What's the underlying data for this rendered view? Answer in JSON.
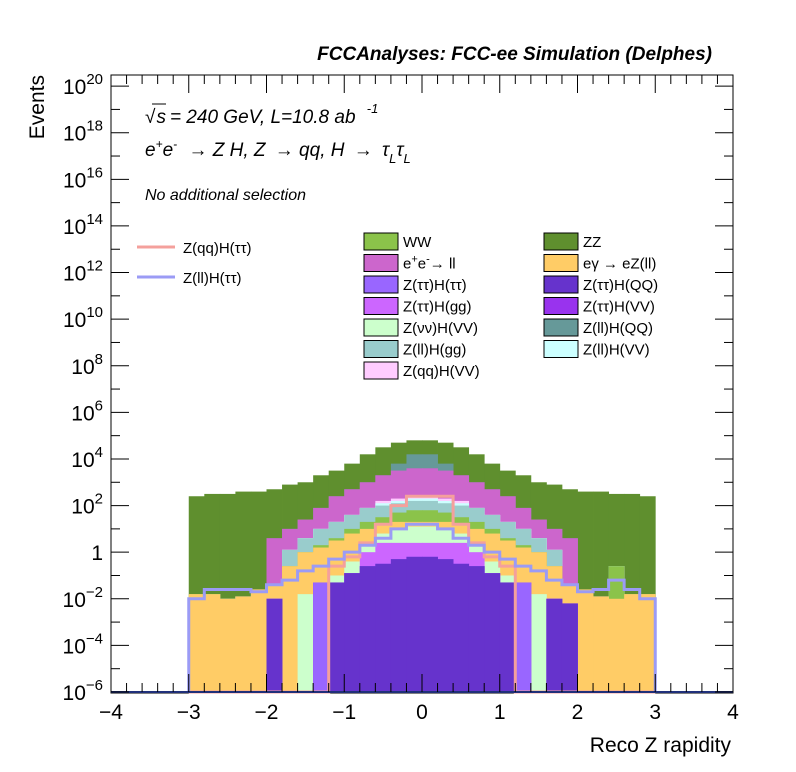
{
  "chart_data": {
    "type": "stacked-histogram",
    "title": "FCCAnalyses: FCC-ee Simulation (Delphes)",
    "xlabel": "Reco Z rapidity",
    "ylabel": "Events",
    "xlim": [
      -4,
      4
    ],
    "ylim": [
      1e-06,
      3e+20
    ],
    "log_y": true,
    "annotations": {
      "energy": "√s = 240 GeV, L=10.8 ab -1",
      "process": "e+e- → Z H, Z → qq, H → τLτL",
      "selection": "No additional selection"
    },
    "x_ticks": [
      "−4",
      "−3",
      "−2",
      "−1",
      "0",
      "1",
      "2",
      "3",
      "4"
    ],
    "y_ticks": [
      "10^-6",
      "10^-4",
      "10^-2",
      "1",
      "10^2",
      "10^4",
      "10^6",
      "10^8",
      "10^10",
      "10^12",
      "10^14",
      "10^16",
      "10^18",
      "10^20"
    ],
    "bin_edges": [
      -3.0,
      -2.8,
      -2.6,
      -2.4,
      -2.2,
      -2.0,
      -1.8,
      -1.6,
      -1.4,
      -1.2,
      -1.0,
      -0.8,
      -0.6,
      -0.4,
      -0.2,
      0.0,
      0.2,
      0.4,
      0.6,
      0.8,
      1.0,
      1.2,
      1.4,
      1.6,
      1.8,
      2.0,
      2.2,
      2.4,
      2.6,
      2.8,
      3.0
    ],
    "stack_order_bottom_to_top": [
      "Z(ττ)H(QQ)",
      "Z(ττ)H(ττ)",
      "Z(ττ)H(VV)",
      "Z(ττ)H(gg)",
      "Z(νν)H(VV)",
      "eγ → eZ(ll)",
      "WW",
      "Z(ll)H(gg)",
      "Z(ll)H(VV)",
      "Z(qq)H(VV)",
      "e+e-→ ll",
      "Z(ll)H(QQ)",
      "ZZ"
    ],
    "legend": [
      {
        "name": "WW",
        "color": "#8bc34a"
      },
      {
        "name": "ZZ",
        "color": "#5f8f2e"
      },
      {
        "name": "e+e-→ ll",
        "color": "#cc66cc"
      },
      {
        "name": "eγ → eZ(ll)",
        "color": "#ffcc66"
      },
      {
        "name": "Z(ττ)H(ττ)",
        "color": "#9966ff"
      },
      {
        "name": "Z(ττ)H(QQ)",
        "color": "#6633cc"
      },
      {
        "name": "Z(ττ)H(gg)",
        "color": "#cc66ff"
      },
      {
        "name": "Z(ττ)H(VV)",
        "color": "#9933ee"
      },
      {
        "name": "Z(νν)H(VV)",
        "color": "#ccffcc"
      },
      {
        "name": "Z(ll)H(QQ)",
        "color": "#669999"
      },
      {
        "name": "Z(ll)H(gg)",
        "color": "#99cccc"
      },
      {
        "name": "Z(ll)H(VV)",
        "color": "#ccffff"
      },
      {
        "name": "Z(qq)H(VV)",
        "color": "#ffccff"
      }
    ],
    "signal_legend": [
      {
        "name": "Z(qq)H(ττ)",
        "color": "#f4a09c"
      },
      {
        "name": "Z(ll)H(ττ)",
        "color": "#9b9bf5"
      }
    ],
    "stack_tops_log10": {
      "Z(ττ)H(QQ)": [
        -6,
        -6,
        -6,
        -6,
        -6,
        -2.0,
        -6,
        -6,
        -6,
        -1.3,
        -0.9,
        -0.6,
        -0.5,
        -0.3,
        -0.2,
        -0.2,
        -0.3,
        -0.5,
        -0.6,
        -0.9,
        -1.3,
        -6,
        -6,
        -2.0,
        -2.2,
        -6,
        -6,
        -6,
        -6,
        -6
      ],
      "Z(ττ)H(ττ)": [
        -6,
        -6,
        -6,
        -6,
        -6,
        -2.0,
        -6,
        -6,
        -1.3,
        -1.3,
        -0.9,
        -0.6,
        -0.5,
        -0.3,
        -0.2,
        -0.2,
        -0.3,
        -0.5,
        -0.6,
        -0.9,
        -1.3,
        -1.3,
        -6,
        -2.0,
        -2.2,
        -6,
        -6,
        -6,
        -6,
        -6
      ],
      "Z(ττ)H(VV)": [
        -6,
        -6,
        -6,
        -6,
        -6,
        -2.0,
        -6,
        -6,
        -1.3,
        -1.3,
        -0.9,
        -0.6,
        -0.5,
        -0.3,
        -0.2,
        -0.2,
        -0.3,
        -0.5,
        -0.6,
        -0.9,
        -1.3,
        -1.3,
        -6,
        -2.0,
        -2.2,
        -6,
        -6,
        -6,
        -6,
        -6
      ],
      "Z(ττ)H(gg)": [
        -6,
        -6,
        -6,
        -6,
        -6,
        -2.0,
        -6,
        -6,
        -1.3,
        -1.3,
        -0.9,
        0.0,
        0.4,
        0.4,
        0.4,
        0.4,
        0.4,
        0.4,
        0.0,
        -0.9,
        -1.3,
        -1.3,
        -6,
        -2.0,
        -2.2,
        -6,
        -6,
        -6,
        -6,
        -6
      ],
      "Z(νν)H(VV)": [
        -6,
        -6,
        -6,
        -6,
        -6,
        -2.0,
        -6,
        -1.8,
        -1.3,
        -1.0,
        -0.4,
        0.3,
        0.8,
        1.0,
        1.1,
        1.1,
        1.0,
        0.8,
        0.3,
        -0.4,
        -1.0,
        -1.3,
        -1.8,
        -2.0,
        -2.2,
        -6,
        -6,
        -6,
        -6,
        -6
      ],
      "eγ → eZ(ll)": [
        -1.8,
        -1.8,
        -2.0,
        -1.9,
        -1.6,
        -1.4,
        -0.6,
        0.0,
        0.2,
        0.5,
        0.8,
        1.0,
        1.2,
        1.3,
        1.3,
        1.3,
        1.3,
        1.2,
        1.0,
        0.8,
        0.5,
        0.2,
        0.0,
        -0.6,
        -1.4,
        -1.6,
        -1.9,
        -2.0,
        -1.8,
        -1.8
      ],
      "WW": [
        -1.8,
        -1.8,
        -2.0,
        -1.9,
        -1.6,
        -1.4,
        -0.6,
        0.0,
        0.3,
        0.6,
        1.0,
        1.3,
        1.5,
        1.7,
        1.8,
        1.8,
        1.7,
        1.5,
        1.3,
        1.0,
        0.6,
        0.3,
        0.0,
        -0.6,
        -1.4,
        -1.6,
        -1.9,
        -0.6,
        -1.8,
        -1.8
      ],
      "Z(ll)H(gg)": [
        -1.8,
        -1.8,
        -2.0,
        -1.9,
        -1.6,
        -1.4,
        0.1,
        0.6,
        1.0,
        1.3,
        1.6,
        1.9,
        2.0,
        2.1,
        2.2,
        2.2,
        2.1,
        2.0,
        1.9,
        1.6,
        1.3,
        1.0,
        0.6,
        0.1,
        -1.4,
        -1.6,
        -1.9,
        -0.6,
        -1.8,
        -1.8
      ],
      "Z(ll)H(VV)": [
        -1.8,
        -1.8,
        -2.0,
        -1.9,
        -1.6,
        -1.4,
        0.1,
        0.6,
        1.0,
        1.3,
        1.6,
        1.9,
        2.1,
        2.2,
        2.3,
        2.3,
        2.2,
        2.1,
        1.9,
        1.6,
        1.3,
        1.0,
        0.6,
        0.1,
        -1.4,
        -1.6,
        -1.9,
        -0.6,
        -1.8,
        -1.8
      ],
      "Z(qq)H(VV)": [
        -1.8,
        -1.8,
        -2.0,
        -1.9,
        -1.6,
        -1.4,
        0.1,
        0.6,
        1.0,
        1.3,
        1.6,
        1.9,
        2.2,
        2.3,
        2.4,
        2.4,
        2.3,
        2.2,
        1.9,
        1.6,
        1.3,
        1.0,
        0.6,
        0.1,
        -1.4,
        -1.6,
        -1.9,
        -0.6,
        -1.8,
        -1.8
      ],
      "e+e-→ ll": [
        -1.8,
        -1.8,
        -2.0,
        -1.9,
        -1.6,
        0.6,
        1.0,
        1.4,
        1.9,
        2.4,
        2.7,
        3.0,
        3.3,
        3.5,
        3.6,
        3.6,
        3.5,
        3.3,
        3.0,
        2.7,
        2.4,
        1.9,
        1.4,
        1.0,
        0.6,
        -1.6,
        -1.9,
        -0.6,
        -1.8,
        -1.8
      ],
      "Z(ll)H(QQ)": [
        -1.8,
        -1.8,
        -2.0,
        -1.9,
        -1.6,
        0.6,
        1.0,
        1.4,
        1.9,
        2.4,
        2.7,
        3.0,
        3.3,
        3.8,
        4.2,
        4.2,
        3.8,
        3.3,
        3.0,
        2.7,
        2.4,
        1.9,
        1.4,
        1.0,
        0.6,
        -1.6,
        -1.9,
        -0.6,
        -1.8,
        -1.8
      ],
      "ZZ": [
        2.4,
        2.5,
        2.5,
        2.6,
        2.6,
        2.7,
        2.9,
        3.0,
        3.3,
        3.5,
        3.8,
        4.2,
        4.5,
        4.7,
        4.8,
        4.8,
        4.7,
        4.5,
        4.2,
        3.8,
        3.5,
        3.3,
        3.0,
        2.9,
        2.7,
        2.6,
        2.6,
        2.5,
        2.5,
        2.4
      ]
    },
    "signal_log10": {
      "Z(qq)H(ττ)": [
        -6,
        -6,
        -6,
        -6,
        -6,
        -6,
        -6,
        -6,
        -6,
        -0.6,
        -0.2,
        0.4,
        1.2,
        2.0,
        2.4,
        2.4,
        2.4,
        1.2,
        0.4,
        -0.2,
        -0.6,
        -6,
        -6,
        -6,
        -6,
        -6,
        -6,
        -6,
        -6,
        -6
      ],
      "Z(ll)H(ττ)": [
        -2.0,
        -1.6,
        -1.6,
        -1.6,
        -1.7,
        -1.4,
        -1.2,
        -0.8,
        -0.6,
        -0.3,
        0.0,
        0.3,
        0.6,
        1.0,
        1.2,
        1.2,
        1.0,
        0.6,
        0.3,
        0.0,
        -0.3,
        -0.6,
        -0.8,
        -1.2,
        -1.4,
        -1.7,
        -1.6,
        -1.2,
        -1.6,
        -2.0
      ]
    }
  }
}
